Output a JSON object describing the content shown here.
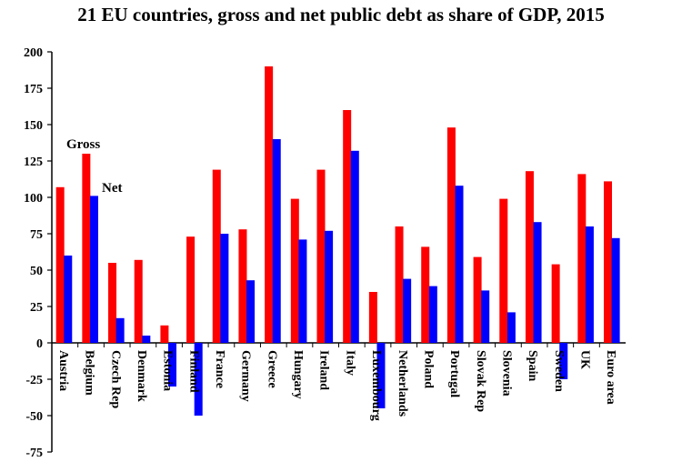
{
  "chart_data": {
    "type": "bar",
    "title": "21 EU countries, gross and net public debt as share of GDP, 2015",
    "xlabel": "",
    "ylabel": "",
    "ylim": [
      -75,
      200
    ],
    "yticks": [
      200,
      175,
      150,
      125,
      100,
      75,
      50,
      25,
      0,
      -25,
      -50,
      -75
    ],
    "grid": false,
    "legend": "inline labels near Austria/Belgium bars",
    "categories": [
      "Austria",
      "Belgium",
      "Czech Rep",
      "Denmark",
      "Estonia",
      "Finland",
      "France",
      "Germany",
      "Greece",
      "Hungary",
      "Ireland",
      "Italy",
      "Luxembourg",
      "Netherlands",
      "Poland",
      "Portugal",
      "Slovak Rep",
      "Slovenia",
      "Spain",
      "Sweden",
      "UK",
      "Euro area"
    ],
    "series": [
      {
        "name": "Gross",
        "color": "#ff0000",
        "values": [
          107,
          130,
          55,
          57,
          12,
          73,
          119,
          78,
          190,
          99,
          119,
          160,
          35,
          80,
          66,
          148,
          59,
          99,
          118,
          54,
          116,
          111
        ]
      },
      {
        "name": "Net",
        "color": "#0000ff",
        "values": [
          60,
          101,
          17,
          5,
          -30,
          -50,
          75,
          43,
          140,
          71,
          77,
          132,
          -45,
          44,
          39,
          108,
          36,
          21,
          83,
          -25,
          80,
          72
        ]
      }
    ]
  }
}
